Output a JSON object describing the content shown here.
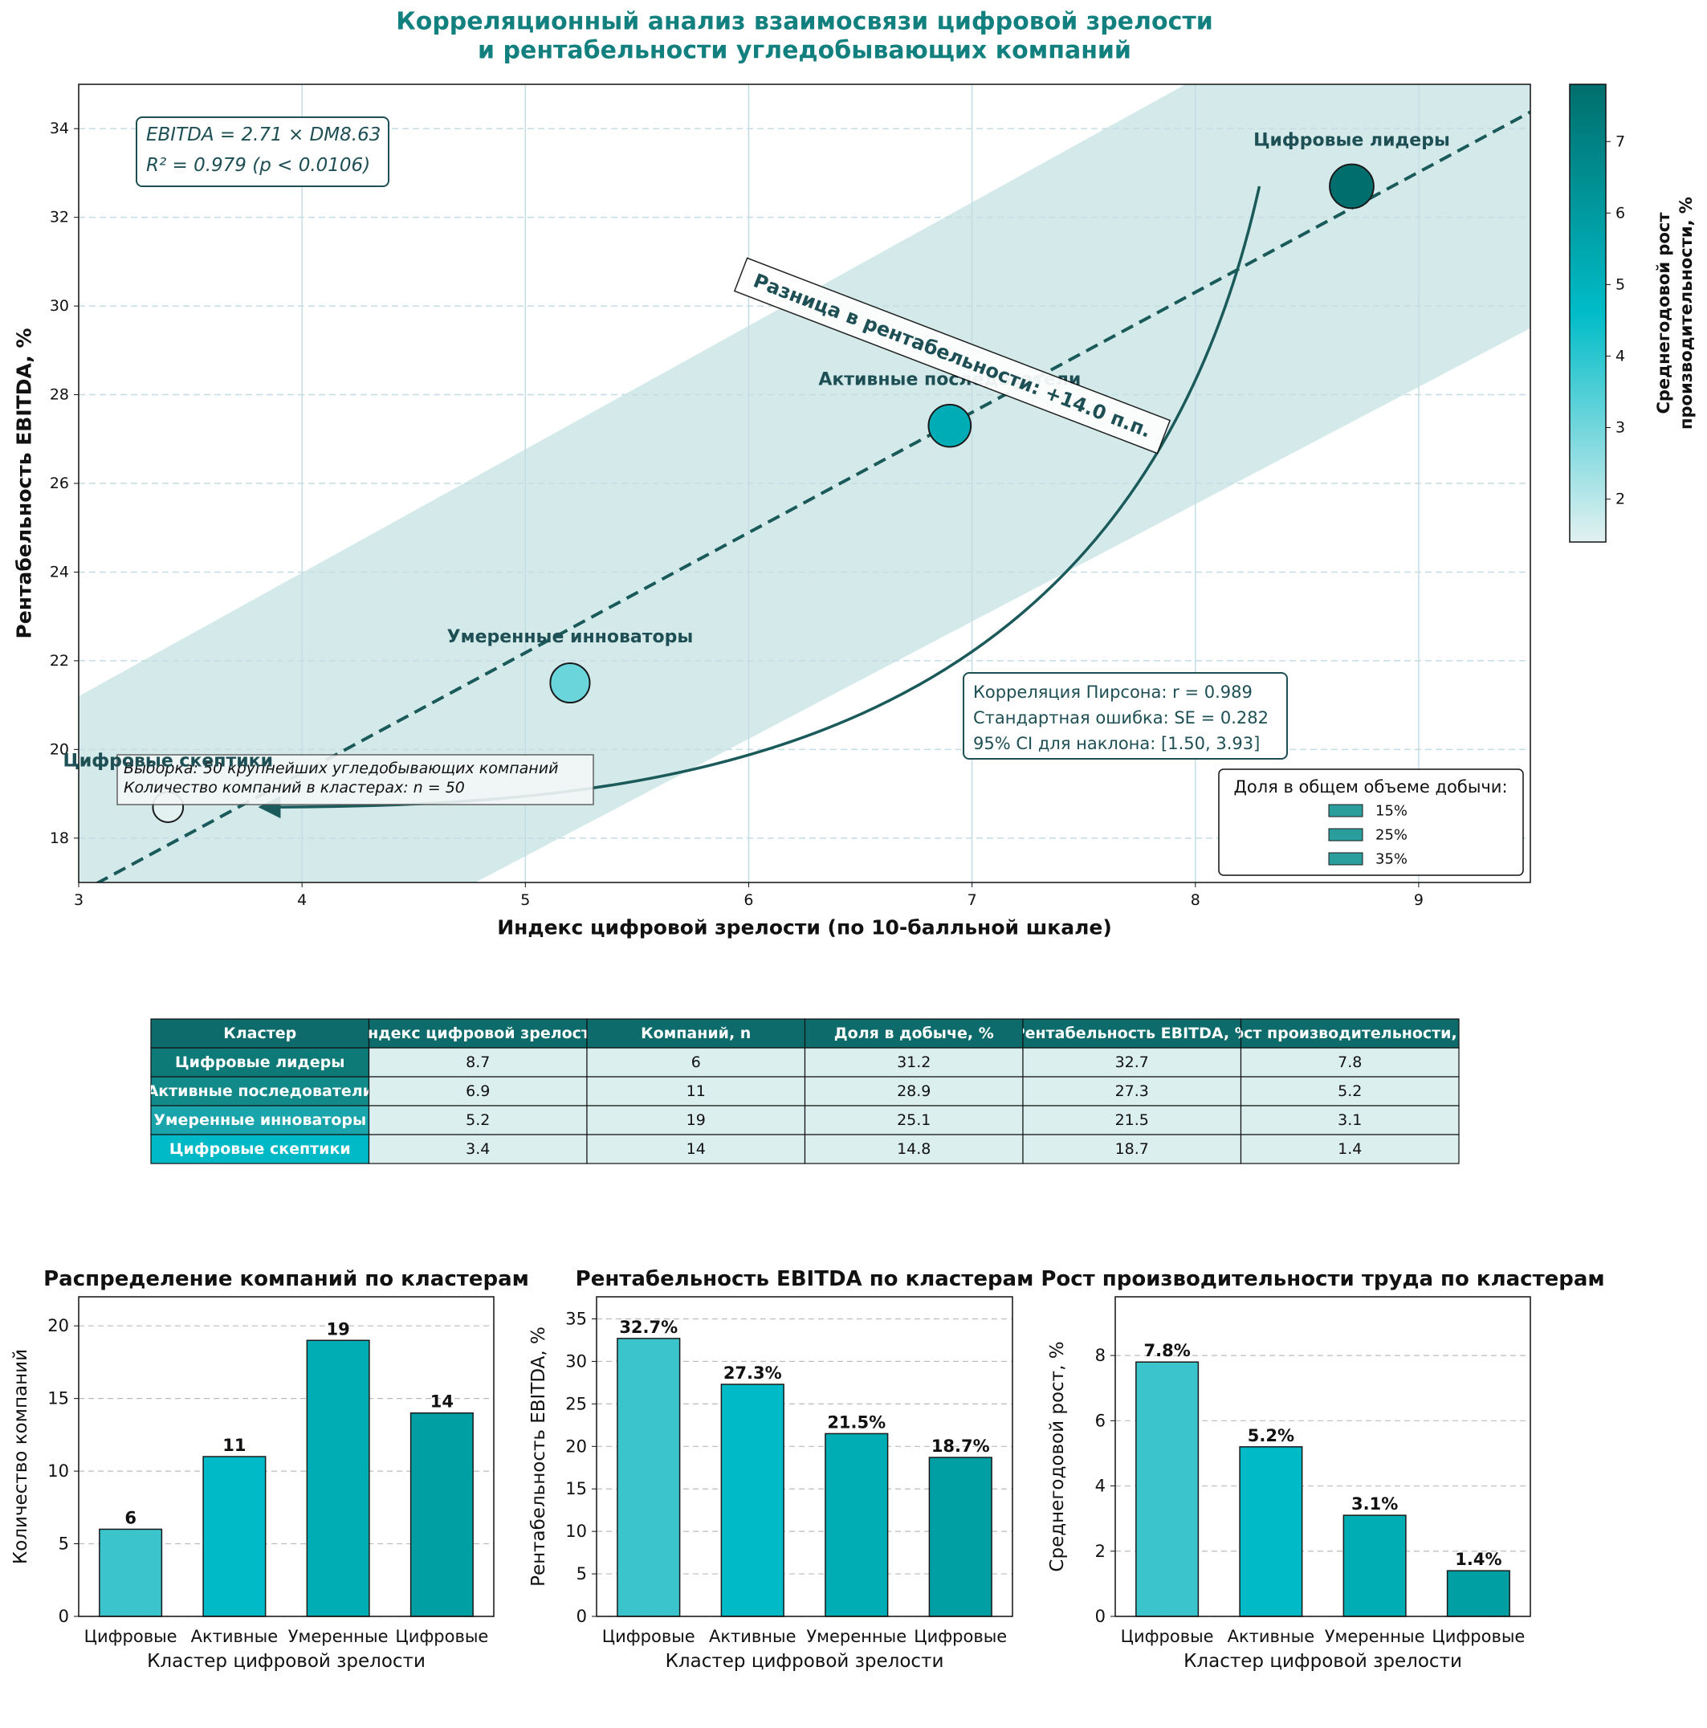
{
  "chart_data": [
    {
      "type": "scatter",
      "title": [
        "Корреляционный анализ взаимосвязи цифровой зрелости",
        "и рентабельности угледобывающих компаний"
      ],
      "xlabel": "Индекс цифровой зрелости (по 10-балльной шкале)",
      "ylabel": "Рентабельность EBITDA, %",
      "xlim": [
        3,
        9.5
      ],
      "ylim": [
        17,
        35
      ],
      "xticks": [
        3,
        4,
        5,
        6,
        7,
        8,
        9
      ],
      "yticks": [
        18,
        20,
        22,
        24,
        26,
        28,
        30,
        32,
        34
      ],
      "grid": true,
      "categories": [
        "Цифровые лидеры",
        "Активные последователи",
        "Умеренные инноваторы",
        "Цифровые скептики"
      ],
      "x": [
        8.7,
        6.9,
        5.2,
        3.4
      ],
      "values": [
        32.7,
        27.3,
        21.5,
        18.7
      ],
      "sizes": [
        31.2,
        28.9,
        25.1,
        14.8
      ],
      "color_values": [
        7.8,
        5.2,
        3.1,
        1.4
      ],
      "fit": {
        "slope": 2.71,
        "intercept": 8.63,
        "color": "#1b5a5a"
      },
      "band": {
        "x": [
          3,
          9.5
        ],
        "lower": [
          12.3,
          29.5
        ],
        "upper": [
          21.2,
          39.3
        ],
        "color": "#d4eaea"
      },
      "colorbar": {
        "label": [
          "Среднегодовой рост",
          "производительности, %"
        ],
        "lim": [
          1.4,
          7.8
        ],
        "ticks": [
          2,
          3,
          4,
          5,
          6,
          7
        ],
        "colors": [
          "#e3f1f1",
          "#00bcc8",
          "#006e6c"
        ]
      },
      "annotations": {
        "equation": [
          "EBITDA = 2.71 × DM8.63",
          "R² = 0.979 (p < 0.0106)"
        ],
        "stats": [
          "Корреляция Пирсона: r = 0.989",
          "Стандартная ошибка: SE = 0.282",
          "95% CI для наклона: [1.50, 3.93]"
        ],
        "sample": [
          "Выборка: 50 крупнейших угледобывающих компаний",
          "Количество компаний в кластерах: n = 50"
        ],
        "difference": "Разница в рентабельности: +14.0 п.п."
      },
      "size_legend": {
        "title": "Доля в общем объеме добычи:",
        "entries": [
          "15%",
          "25%",
          "35%"
        ],
        "color": "#2a9d9d"
      }
    },
    {
      "type": "bar",
      "title": "Распределение компаний по кластерам",
      "xlabel": "Кластер цифровой зрелости",
      "ylabel": "Количество компаний",
      "categories": [
        "Цифровые",
        "Активные",
        "Умеренные",
        "Цифровые"
      ],
      "values": [
        6,
        11,
        19,
        14
      ],
      "colors": [
        "#3cc4cc",
        "#00bac8",
        "#00adb5",
        "#009fa3"
      ],
      "ylim": [
        0,
        22
      ],
      "yticks": [
        0,
        5,
        10,
        15,
        20
      ],
      "grid": true
    },
    {
      "type": "bar",
      "title": "Рентабельность EBITDA по кластерам",
      "xlabel": "Кластер цифровой зрелости",
      "ylabel": "Рентабельность EBITDA, %",
      "categories": [
        "Цифровые",
        "Активные",
        "Умеренные",
        "Цифровые"
      ],
      "values": [
        32.7,
        27.3,
        21.5,
        18.7
      ],
      "value_labels": [
        "32.7%",
        "27.3%",
        "21.5%",
        "18.7%"
      ],
      "colors": [
        "#3cc4cc",
        "#00bac8",
        "#00adb5",
        "#009fa3"
      ],
      "ylim": [
        0,
        37.6
      ],
      "yticks": [
        0,
        5,
        10,
        15,
        20,
        25,
        30,
        35
      ],
      "grid": true
    },
    {
      "type": "bar",
      "title": "Рост производительности труда по кластерам",
      "xlabel": "Кластер цифровой зрелости",
      "ylabel": "Среднегодовой рост, %",
      "categories": [
        "Цифровые",
        "Активные",
        "Умеренные",
        "Цифровые"
      ],
      "values": [
        7.8,
        5.2,
        3.1,
        1.4
      ],
      "value_labels": [
        "7.8%",
        "5.2%",
        "3.1%",
        "1.4%"
      ],
      "colors": [
        "#3cc4cc",
        "#00bac8",
        "#00adb5",
        "#009fa3"
      ],
      "ylim": [
        0,
        9.8
      ],
      "yticks": [
        0,
        2,
        4,
        6,
        8
      ],
      "grid": true
    }
  ],
  "table": {
    "header": [
      "Кластер",
      "Индекс цифровой зрелости",
      "Компаний, n",
      "Доля в добыче, %",
      "Рентабельность EBITDA, %",
      "Рост производительности, %"
    ],
    "rows": [
      [
        "Цифровые лидеры",
        8.7,
        6,
        31.2,
        32.7,
        7.8
      ],
      [
        "Активные последователи",
        6.9,
        11,
        28.9,
        27.3,
        5.2
      ],
      [
        "Умеренные инноваторы",
        5.2,
        19,
        25.1,
        21.5,
        3.1
      ],
      [
        "Цифровые скептики",
        3.4,
        14,
        14.8,
        18.7,
        1.4
      ]
    ]
  }
}
